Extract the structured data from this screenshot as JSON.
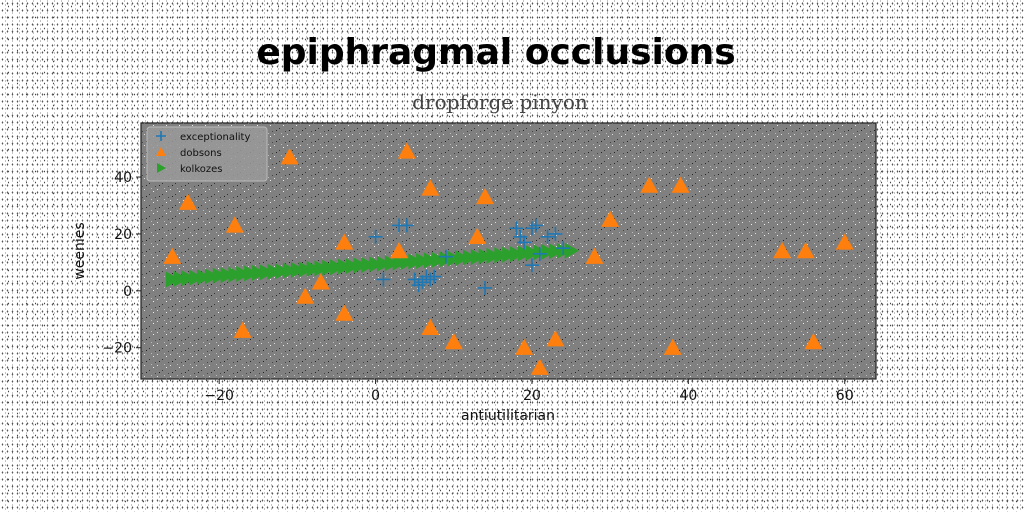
{
  "chart_data": {
    "type": "scatter",
    "title": "epiphragmal occlusions",
    "subtitle": "dropforge pinyon",
    "xlabel": "antiutilitarian",
    "ylabel": "weenies",
    "xlim": [
      -30,
      64
    ],
    "ylim": [
      -31,
      59
    ],
    "xticks": [
      -20,
      0,
      20,
      40,
      60
    ],
    "yticks": [
      -20,
      0,
      20,
      40
    ],
    "xtick_labels": [
      "−20",
      "0",
      "20",
      "40",
      "60"
    ],
    "ytick_labels": [
      "−20",
      "0",
      "20",
      "40"
    ],
    "grid": false,
    "legend_position": "top-left",
    "series": [
      {
        "name": "exceptionality",
        "marker": "plus",
        "color": "#1f77b4",
        "points": [
          [
            0,
            19
          ],
          [
            1,
            4
          ],
          [
            3,
            23
          ],
          [
            4,
            23
          ],
          [
            5,
            4
          ],
          [
            5.5,
            2
          ],
          [
            6,
            3
          ],
          [
            6.5,
            5
          ],
          [
            7,
            4
          ],
          [
            7.5,
            5
          ],
          [
            9,
            12
          ],
          [
            14,
            1
          ],
          [
            18,
            22
          ],
          [
            18.5,
            19
          ],
          [
            19,
            17
          ],
          [
            20,
            22
          ],
          [
            20.5,
            23
          ],
          [
            20,
            9
          ],
          [
            22,
            19
          ],
          [
            23,
            20
          ],
          [
            21,
            13
          ],
          [
            24,
            15
          ]
        ]
      },
      {
        "name": "dobsons",
        "marker": "triangle",
        "color": "#ff7f0e",
        "points": [
          [
            -26,
            12
          ],
          [
            -24,
            31
          ],
          [
            -18,
            23
          ],
          [
            -17,
            -14
          ],
          [
            -11,
            47
          ],
          [
            -9,
            -2
          ],
          [
            -7,
            3
          ],
          [
            -4,
            17
          ],
          [
            -4,
            -8
          ],
          [
            3,
            14
          ],
          [
            4,
            49
          ],
          [
            7,
            36
          ],
          [
            7,
            -13
          ],
          [
            10,
            -18
          ],
          [
            13,
            19
          ],
          [
            14,
            33
          ],
          [
            19,
            -20
          ],
          [
            21,
            -27
          ],
          [
            23,
            -17
          ],
          [
            28,
            12
          ],
          [
            30,
            25
          ],
          [
            35,
            37
          ],
          [
            38,
            -20
          ],
          [
            39,
            37
          ],
          [
            52,
            14
          ],
          [
            55,
            14
          ],
          [
            56,
            -18
          ],
          [
            60,
            17
          ]
        ]
      },
      {
        "name": "kolkozes",
        "marker": "triangle-right",
        "color": "#2ca02c",
        "points": [
          [
            -26,
            4
          ],
          [
            -25,
            4.2
          ],
          [
            -24,
            4.4
          ],
          [
            -23,
            4.6
          ],
          [
            -22,
            4.8
          ],
          [
            -21,
            5.1
          ],
          [
            -20,
            5.3
          ],
          [
            -19,
            5.5
          ],
          [
            -18,
            5.7
          ],
          [
            -17,
            5.9
          ],
          [
            -16,
            6.1
          ],
          [
            -15,
            6.3
          ],
          [
            -14,
            6.5
          ],
          [
            -13,
            6.7
          ],
          [
            -12,
            6.9
          ],
          [
            -11,
            7.1
          ],
          [
            -10,
            7.3
          ],
          [
            -9,
            7.5
          ],
          [
            -8,
            7.7
          ],
          [
            -7,
            7.9
          ],
          [
            -6,
            8.1
          ],
          [
            -5,
            8.3
          ],
          [
            -4,
            8.5
          ],
          [
            -3,
            8.7
          ],
          [
            -2,
            8.9
          ],
          [
            -1,
            9.1
          ],
          [
            0,
            9.3
          ],
          [
            1,
            9.5
          ],
          [
            2,
            9.7
          ],
          [
            3,
            9.9
          ],
          [
            4,
            10.1
          ],
          [
            5,
            10.3
          ],
          [
            6,
            10.5
          ],
          [
            7,
            10.7
          ],
          [
            8,
            10.9
          ],
          [
            9,
            11.1
          ],
          [
            10,
            11.3
          ],
          [
            11,
            11.5
          ],
          [
            12,
            11.7
          ],
          [
            13,
            11.9
          ],
          [
            14,
            12.1
          ],
          [
            15,
            12.3
          ],
          [
            16,
            12.5
          ],
          [
            17,
            12.7
          ],
          [
            18,
            12.9
          ],
          [
            19,
            13.1
          ],
          [
            20,
            13.3
          ],
          [
            21,
            13.5
          ],
          [
            22,
            13.7
          ],
          [
            23,
            13.9
          ],
          [
            24,
            14
          ],
          [
            25,
            14.1
          ]
        ]
      }
    ]
  }
}
